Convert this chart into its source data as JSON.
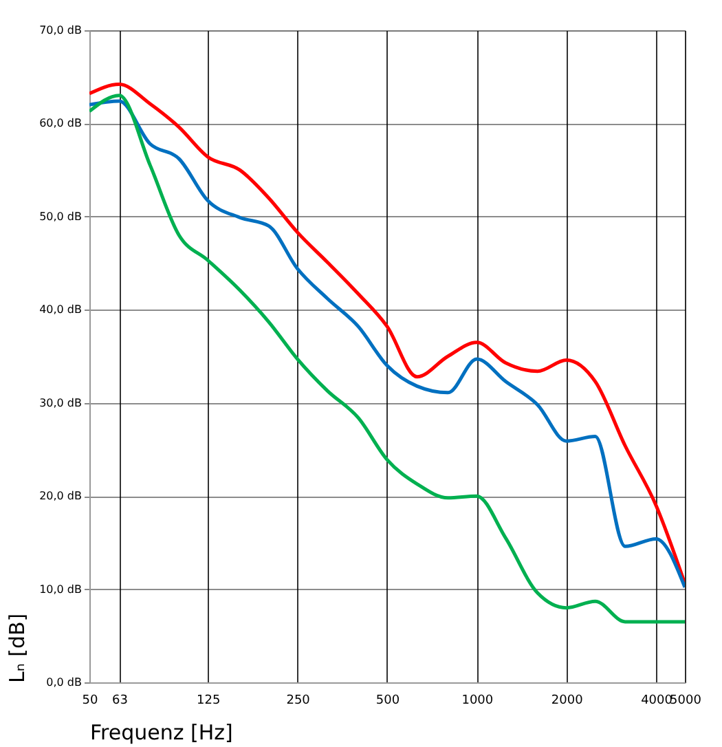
{
  "chart_data": {
    "type": "line",
    "xlabel": "Frequenz [Hz]",
    "ylabel": "Lₙ [dB]",
    "log": "x",
    "x": [
      50,
      63,
      80,
      100,
      125,
      160,
      200,
      250,
      315,
      400,
      500,
      630,
      800,
      1000,
      1250,
      1600,
      2000,
      2500,
      3150,
      4000,
      5000
    ],
    "series": [
      {
        "color": "#ff0000",
        "values": [
          63.2,
          64.2,
          62.1,
          59.6,
          56.4,
          55.0,
          52.0,
          48.3,
          45.1,
          41.7,
          38.2,
          32.8,
          35.0,
          36.5,
          34.3,
          33.4,
          34.6,
          32.3,
          25.4,
          19.0,
          10.6
        ]
      },
      {
        "color": "#0070c0",
        "values": [
          62.0,
          62.4,
          57.8,
          56.2,
          51.7,
          49.9,
          49.0,
          44.4,
          41.2,
          38.2,
          34.0,
          31.8,
          31.1,
          34.7,
          32.3,
          29.8,
          25.9,
          26.4,
          14.6,
          15.4,
          10.2
        ]
      },
      {
        "color": "#00b050",
        "values": [
          61.3,
          63.0,
          55.5,
          48.0,
          45.3,
          42.1,
          38.7,
          34.7,
          31.3,
          28.4,
          23.9,
          21.3,
          19.8,
          20.0,
          15.5,
          9.6,
          8.0,
          8.7,
          6.5,
          6.5,
          6.5
        ]
      }
    ],
    "xlim": [
      50,
      5000
    ],
    "xticks": [
      50,
      63,
      125,
      250,
      500,
      1000,
      2000,
      4000,
      5000
    ],
    "ylim": [
      0,
      70
    ],
    "yticks": [
      {
        "value": 0,
        "label": "0,0 dB"
      },
      {
        "value": 10,
        "label": "10,0 dB"
      },
      {
        "value": 20,
        "label": "20,0 dB"
      },
      {
        "value": 30,
        "label": "30,0 dB"
      },
      {
        "value": 40,
        "label": "40,0 dB"
      },
      {
        "value": 50,
        "label": "50,0 dB"
      },
      {
        "value": 60,
        "label": "60,0 dB"
      },
      {
        "value": 70,
        "label": "70,0 dB"
      }
    ],
    "grid": true,
    "marker": "none",
    "line_style": "solid"
  }
}
